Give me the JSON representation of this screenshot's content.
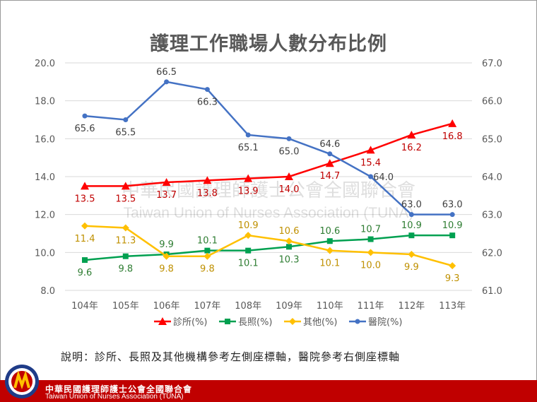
{
  "chart_data": {
    "type": "line",
    "title": "護理工作職場人數分布比例",
    "categories": [
      "104年",
      "105年",
      "106年",
      "107年",
      "108年",
      "109年",
      "110年",
      "111年",
      "112年",
      "113年"
    ],
    "left_axis": {
      "ylim": [
        8.0,
        20.0
      ],
      "ticks": [
        "8.0",
        "10.0",
        "12.0",
        "14.0",
        "16.0",
        "18.0",
        "20.0"
      ]
    },
    "right_axis": {
      "ylim": [
        61.0,
        67.0
      ],
      "ticks": [
        "61.0",
        "62.0",
        "63.0",
        "64.0",
        "65.0",
        "66.0",
        "67.0"
      ]
    },
    "grid": true,
    "legend_placement": "bottom",
    "series": [
      {
        "name": "診所(%)",
        "axis": "left",
        "color": "#ff0000",
        "marker": "triangle",
        "label_color": "#c00000",
        "values": [
          13.5,
          13.5,
          13.7,
          13.8,
          13.9,
          14.0,
          14.7,
          15.4,
          16.2,
          16.8
        ]
      },
      {
        "name": "長照(%)",
        "axis": "left",
        "color": "#00a050",
        "marker": "square",
        "label_color": "#2e7d32",
        "values": [
          9.6,
          9.8,
          9.9,
          10.1,
          10.1,
          10.3,
          10.6,
          10.7,
          10.9,
          10.9
        ]
      },
      {
        "name": "其他(%)",
        "axis": "left",
        "color": "#ffc000",
        "marker": "diamond",
        "label_color": "#bf9000",
        "values": [
          11.4,
          11.3,
          9.8,
          9.8,
          10.9,
          10.6,
          10.1,
          10.0,
          9.9,
          9.3
        ]
      },
      {
        "name": "醫院(%)",
        "axis": "right",
        "color": "#4472c4",
        "marker": "circle",
        "label_color": "#404040",
        "values": [
          65.6,
          65.5,
          66.5,
          66.3,
          65.1,
          65.0,
          64.6,
          64.0,
          63.0,
          63.0
        ]
      }
    ]
  },
  "watermark": {
    "line1": "中華民國護理師護士公會全國聯合會",
    "line2": "Taiwan Union of Nurses Association (TUNA)"
  },
  "note": "說明：診所、長照及其他機構參考左側座標軸，醫院參考右側座標軸",
  "footer": {
    "name_zh": "中華民國護理師護士公會全國聯合會",
    "name_en": "Taiwan Union of Nurses Association (TUNA)"
  }
}
